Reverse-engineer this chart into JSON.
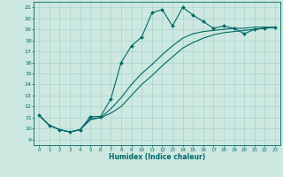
{
  "xlabel": "Humidex (Indice chaleur)",
  "xlim": [
    -0.5,
    23.5
  ],
  "ylim": [
    8.5,
    21.5
  ],
  "yticks": [
    9,
    10,
    11,
    12,
    13,
    14,
    15,
    16,
    17,
    18,
    19,
    20,
    21
  ],
  "xticks": [
    0,
    1,
    2,
    3,
    4,
    5,
    6,
    7,
    8,
    9,
    10,
    11,
    12,
    13,
    14,
    15,
    16,
    17,
    18,
    19,
    20,
    21,
    22,
    23
  ],
  "bg_color": "#cce8e0",
  "grid_color": "#aad4cc",
  "line_color": "#006868",
  "line1_x": [
    0,
    1,
    2,
    3,
    4,
    5,
    6,
    7,
    8,
    9,
    10,
    11,
    12,
    13,
    14,
    15,
    16,
    17,
    18,
    19,
    20,
    21,
    22,
    23
  ],
  "line1_y": [
    11.2,
    10.3,
    9.9,
    9.7,
    9.9,
    11.1,
    11.1,
    12.7,
    16.0,
    17.5,
    18.3,
    20.5,
    20.8,
    19.3,
    21.0,
    20.3,
    19.7,
    19.1,
    19.3,
    19.1,
    18.6,
    19.0,
    19.1,
    19.2
  ],
  "line2_x": [
    0,
    1,
    2,
    3,
    4,
    5,
    6,
    7,
    8,
    9,
    10,
    11,
    12,
    13,
    14,
    15,
    16,
    17,
    18,
    19,
    20,
    21,
    22,
    23
  ],
  "line2_y": [
    11.2,
    10.3,
    9.9,
    9.7,
    9.9,
    10.9,
    11.0,
    11.8,
    12.8,
    14.0,
    15.0,
    15.8,
    16.7,
    17.5,
    18.2,
    18.6,
    18.8,
    18.9,
    19.0,
    19.1,
    19.1,
    19.2,
    19.2,
    19.2
  ],
  "line3_x": [
    0,
    1,
    2,
    3,
    4,
    5,
    6,
    7,
    8,
    9,
    10,
    11,
    12,
    13,
    14,
    15,
    16,
    17,
    18,
    19,
    20,
    21,
    22,
    23
  ],
  "line3_y": [
    11.2,
    10.3,
    9.9,
    9.7,
    9.9,
    10.8,
    11.0,
    11.4,
    12.0,
    13.0,
    14.0,
    14.8,
    15.7,
    16.5,
    17.3,
    17.8,
    18.2,
    18.5,
    18.7,
    18.8,
    18.9,
    19.0,
    19.1,
    19.2
  ]
}
